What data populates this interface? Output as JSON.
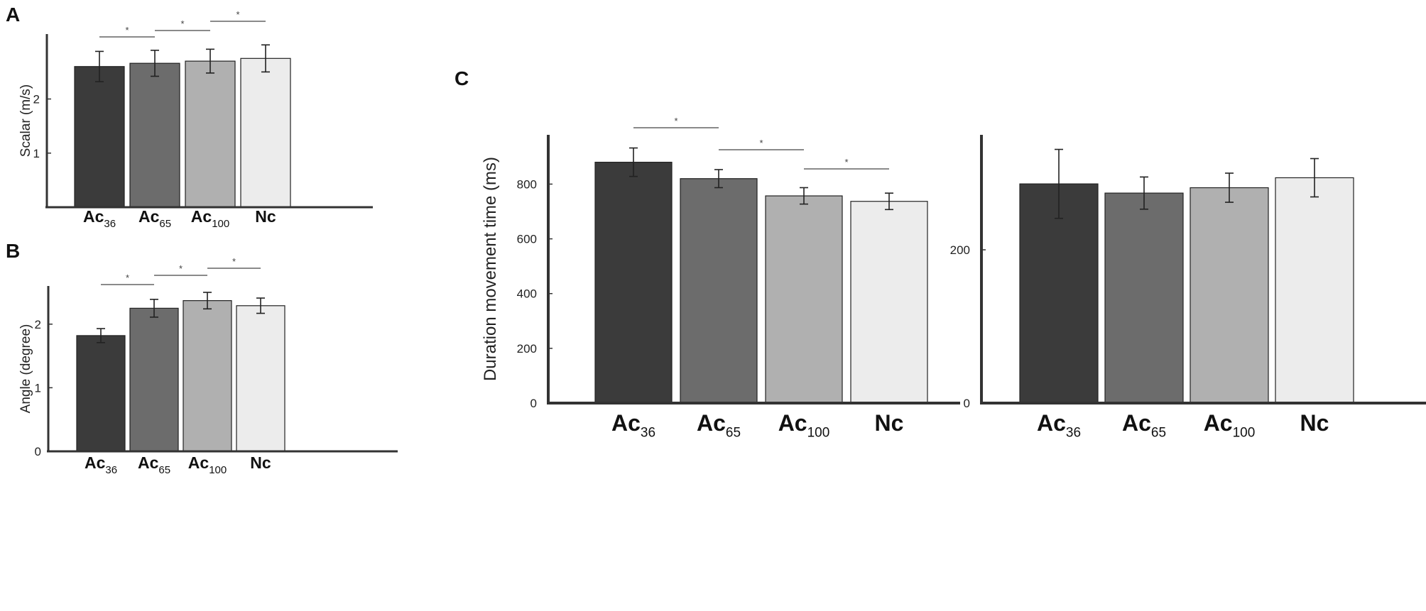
{
  "colors": {
    "Ac36": "#3b3b3b",
    "Ac65": "#6c6c6c",
    "Ac100": "#b0b0b0",
    "Nc": "#ececec",
    "axis": "#333333"
  },
  "chart_data": [
    {
      "panel": "A",
      "type": "bar",
      "categories": [
        {
          "base": "Ac",
          "sub": "36"
        },
        {
          "base": "Ac",
          "sub": "65"
        },
        {
          "base": "Ac",
          "sub": "100"
        },
        {
          "base": "Nc",
          "sub": ""
        }
      ],
      "values": [
        2.6,
        2.66,
        2.7,
        2.75
      ],
      "errors": [
        0.28,
        0.24,
        0.22,
        0.25
      ],
      "ylabel": "Scalar (m/s)",
      "ylim": [
        0,
        3.2
      ],
      "yticks": [
        1,
        2
      ],
      "significance": [
        {
          "from": 0,
          "to": 1,
          "label": "*"
        },
        {
          "from": 1,
          "to": 2,
          "label": "*"
        },
        {
          "from": 2,
          "to": 3,
          "label": "*"
        }
      ]
    },
    {
      "panel": "B",
      "type": "bar",
      "categories": [
        {
          "base": "Ac",
          "sub": "36"
        },
        {
          "base": "Ac",
          "sub": "65"
        },
        {
          "base": "Ac",
          "sub": "100"
        },
        {
          "base": "Nc",
          "sub": ""
        }
      ],
      "values": [
        1.82,
        2.25,
        2.37,
        2.29
      ],
      "errors": [
        0.11,
        0.14,
        0.13,
        0.12
      ],
      "ylabel": "Angle (degree)",
      "ylim": [
        0,
        2.6
      ],
      "yticks": [
        0,
        1,
        2
      ],
      "significance": [
        {
          "from": 0,
          "to": 1,
          "label": "*"
        },
        {
          "from": 1,
          "to": 2,
          "label": "*"
        },
        {
          "from": 2,
          "to": 3,
          "label": "*"
        }
      ]
    },
    {
      "panel": "C",
      "type": "bar",
      "categories": [
        {
          "base": "Ac",
          "sub": "36"
        },
        {
          "base": "Ac",
          "sub": "65"
        },
        {
          "base": "Ac",
          "sub": "100"
        },
        {
          "base": "Nc",
          "sub": ""
        }
      ],
      "values": [
        880,
        820,
        757,
        737
      ],
      "errors": [
        52,
        33,
        30,
        30
      ],
      "ylabel": "Duration movement time (ms)",
      "ylim": [
        0,
        980
      ],
      "yticks": [
        0,
        200,
        400,
        600,
        800
      ],
      "significance": [
        {
          "from": 0,
          "to": 1,
          "label": "*"
        },
        {
          "from": 1,
          "to": 2,
          "label": "*"
        },
        {
          "from": 2,
          "to": 3,
          "label": "*"
        }
      ]
    },
    {
      "panel": "",
      "type": "bar",
      "categories": [
        {
          "base": "Ac",
          "sub": "36"
        },
        {
          "base": "Ac",
          "sub": "65"
        },
        {
          "base": "Ac",
          "sub": "100"
        },
        {
          "base": "Nc",
          "sub": ""
        }
      ],
      "values": [
        286,
        274,
        281,
        294
      ],
      "errors": [
        45,
        21,
        19,
        25
      ],
      "ylabel": "",
      "ylim": [
        0,
        350
      ],
      "yticks": [
        0,
        200
      ],
      "significance": []
    }
  ]
}
